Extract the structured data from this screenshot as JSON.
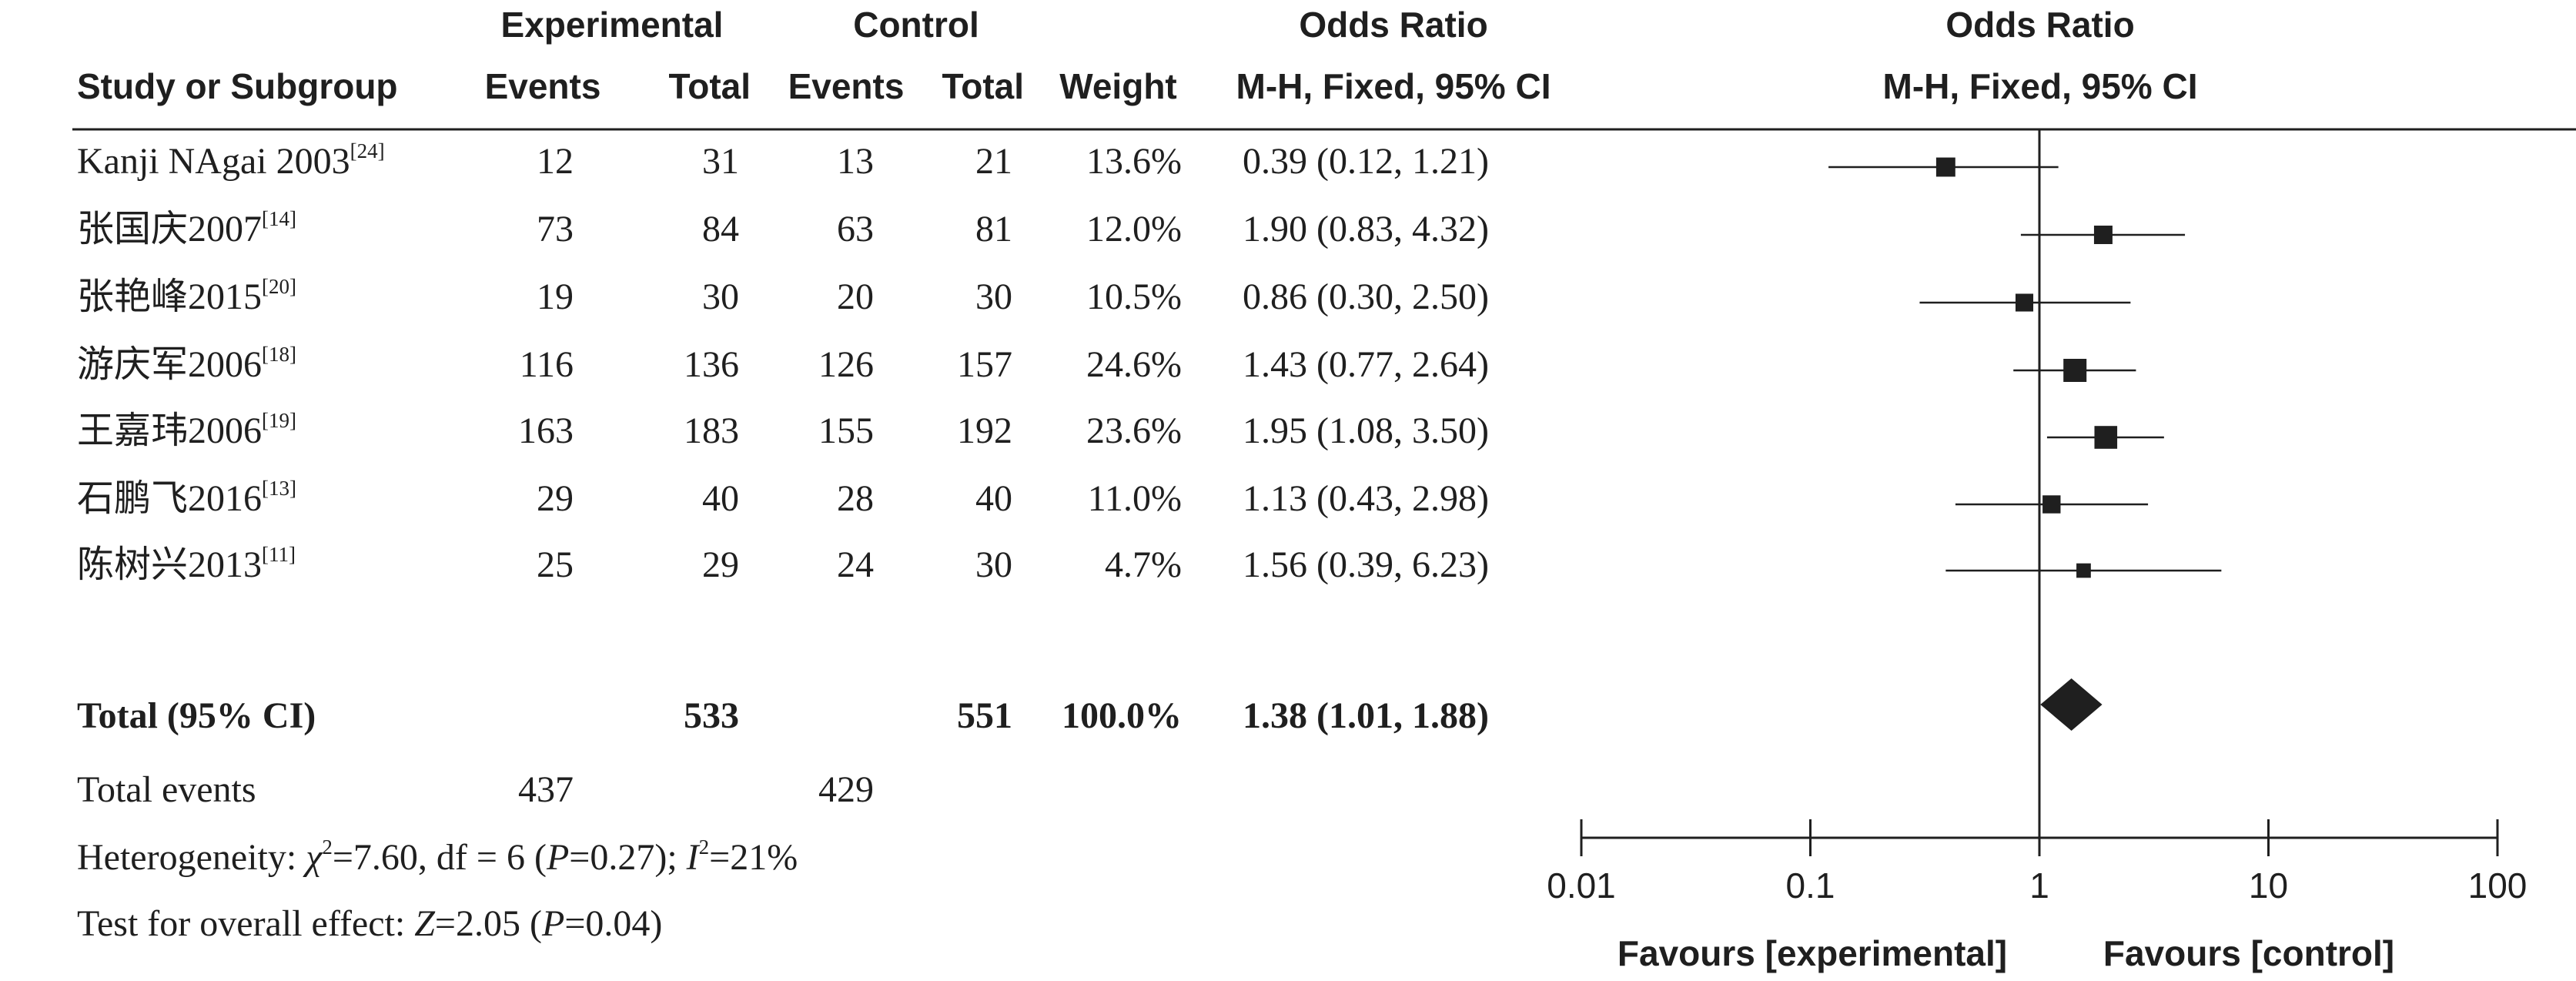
{
  "header": {
    "experimental": "Experimental",
    "control": "Control",
    "odds_ratio": "Odds Ratio",
    "odds_ratio_plot": "Odds Ratio",
    "study": "Study or Subgroup",
    "exp_events": "Events",
    "exp_total": "Total",
    "ctl_events": "Events",
    "ctl_total": "Total",
    "weight": "Weight",
    "method": "M-H, Fixed, 95% CI",
    "method_plot": "M-H, Fixed, 95% CI"
  },
  "studies": [
    {
      "name": "Kanji NAgai 2003",
      "ref": "[24]",
      "exp_events": "12",
      "exp_total": "31",
      "ctl_events": "13",
      "ctl_total": "21",
      "weight": "13.6%",
      "ci_text": "0.39 (0.12, 1.21)"
    },
    {
      "name": "张国庆2007",
      "ref": "[14]",
      "exp_events": "73",
      "exp_total": "84",
      "ctl_events": "63",
      "ctl_total": "81",
      "weight": "12.0%",
      "ci_text": "1.90 (0.83, 4.32)"
    },
    {
      "name": "张艳峰2015",
      "ref": "[20]",
      "exp_events": "19",
      "exp_total": "30",
      "ctl_events": "20",
      "ctl_total": "30",
      "weight": "10.5%",
      "ci_text": "0.86 (0.30, 2.50)"
    },
    {
      "name": "游庆军2006",
      "ref": "[18]",
      "exp_events": "116",
      "exp_total": "136",
      "ctl_events": "126",
      "ctl_total": "157",
      "weight": "24.6%",
      "ci_text": "1.43 (0.77, 2.64)"
    },
    {
      "name": "王嘉玮2006",
      "ref": "[19]",
      "exp_events": "163",
      "exp_total": "183",
      "ctl_events": "155",
      "ctl_total": "192",
      "weight": "23.6%",
      "ci_text": "1.95 (1.08, 3.50)"
    },
    {
      "name": "石鹏飞2016",
      "ref": "[13]",
      "exp_events": "29",
      "exp_total": "40",
      "ctl_events": "28",
      "ctl_total": "40",
      "weight": "11.0%",
      "ci_text": "1.13 (0.43, 2.98)"
    },
    {
      "name": "陈树兴2013",
      "ref": "[11]",
      "exp_events": "25",
      "exp_total": "29",
      "ctl_events": "24",
      "ctl_total": "30",
      "weight": "4.7%",
      "ci_text": "1.56 (0.39, 6.23)"
    }
  ],
  "total": {
    "label": "Total (95% CI)",
    "exp_total": "533",
    "ctl_total": "551",
    "weight": "100.0%",
    "ci_text": "1.38 (1.01, 1.88)"
  },
  "total_events": {
    "label": "Total events",
    "exp": "437",
    "ctl": "429"
  },
  "footer": {
    "het_prefix": "Heterogeneity: ",
    "het_chi": "χ",
    "het_sup": "2",
    "het_mid": "=7.60, df = 6 (",
    "het_p": "P",
    "het_pval": "=0.27); ",
    "het_i": "I",
    "het_i_sup": "2",
    "het_end": "=21%",
    "test_prefix": "Test for overall effect: ",
    "test_z": "Z",
    "test_mid": "=2.05 (",
    "test_p": "P",
    "test_end": "=0.04)"
  },
  "chart_data": {
    "type": "forest",
    "x_scale": "log",
    "xlim": [
      0.01,
      100
    ],
    "x_ticks": [
      0.01,
      0.1,
      1,
      10,
      100
    ],
    "x_tick_labels": [
      "0.01",
      "0.1",
      "1",
      "10",
      "100"
    ],
    "reference_line": 1,
    "favours_left": "Favours [experimental]",
    "favours_right": "Favours [control]",
    "studies": [
      {
        "name": "Kanji NAgai 2003",
        "or": 0.39,
        "lower": 0.12,
        "upper": 1.21,
        "weight": 13.6
      },
      {
        "name": "张国庆2007",
        "or": 1.9,
        "lower": 0.83,
        "upper": 4.32,
        "weight": 12.0
      },
      {
        "name": "张艳峰2015",
        "or": 0.86,
        "lower": 0.3,
        "upper": 2.5,
        "weight": 10.5
      },
      {
        "name": "游庆军2006",
        "or": 1.43,
        "lower": 0.77,
        "upper": 2.64,
        "weight": 24.6
      },
      {
        "name": "王嘉玮2006",
        "or": 1.95,
        "lower": 1.08,
        "upper": 3.5,
        "weight": 23.6
      },
      {
        "name": "石鹏飞2016",
        "or": 1.13,
        "lower": 0.43,
        "upper": 2.98,
        "weight": 11.0
      },
      {
        "name": "陈树兴2013",
        "or": 1.56,
        "lower": 0.39,
        "upper": 6.23,
        "weight": 4.7
      }
    ],
    "pooled": {
      "or": 1.38,
      "lower": 1.01,
      "upper": 1.88
    }
  },
  "colors": {
    "ink": "#1f1f1f",
    "background": "#ffffff"
  }
}
